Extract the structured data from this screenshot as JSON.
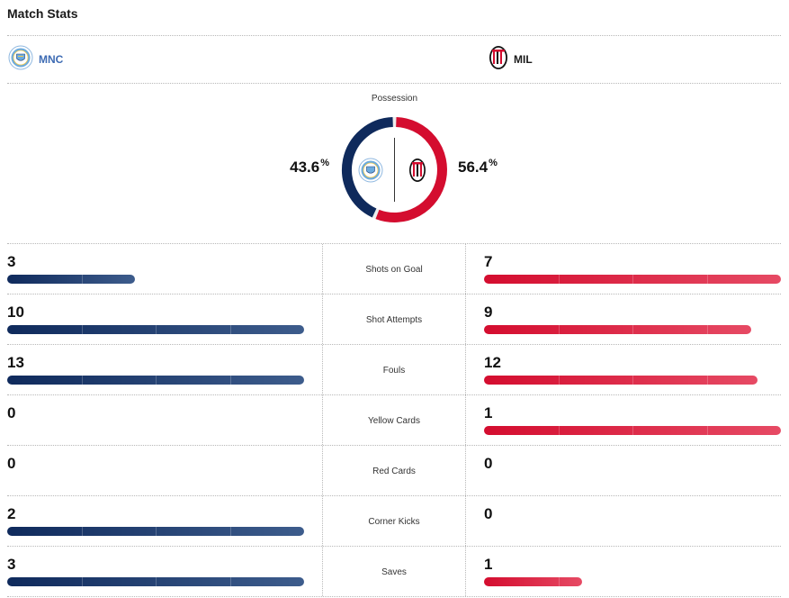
{
  "header": {
    "title": "Match Stats"
  },
  "teams": {
    "home": {
      "abbr": "MNC",
      "color": "#0f2a5c",
      "accent": "#6cabdd"
    },
    "away": {
      "abbr": "MIL",
      "color": "#d40d2f",
      "accent": "#111111"
    }
  },
  "possession": {
    "label": "Possession",
    "home": "43.6",
    "away": "56.4",
    "unit": "%",
    "home_value": 43.6,
    "away_value": 56.4
  },
  "bar_scale_max": 10,
  "stats": [
    {
      "label": "Shots on Goal",
      "home": "3",
      "away": "7",
      "home_fill": 0.43,
      "away_fill": 1.0
    },
    {
      "label": "Shot Attempts",
      "home": "10",
      "away": "9",
      "home_fill": 1.0,
      "away_fill": 0.9
    },
    {
      "label": "Fouls",
      "home": "13",
      "away": "12",
      "home_fill": 1.0,
      "away_fill": 0.92
    },
    {
      "label": "Yellow Cards",
      "home": "0",
      "away": "1",
      "home_fill": 0.0,
      "away_fill": 1.0
    },
    {
      "label": "Red Cards",
      "home": "0",
      "away": "0",
      "home_fill": 0.0,
      "away_fill": 0.0
    },
    {
      "label": "Corner Kicks",
      "home": "2",
      "away": "0",
      "home_fill": 1.0,
      "away_fill": 0.0
    },
    {
      "label": "Saves",
      "home": "3",
      "away": "1",
      "home_fill": 1.0,
      "away_fill": 0.33
    }
  ]
}
